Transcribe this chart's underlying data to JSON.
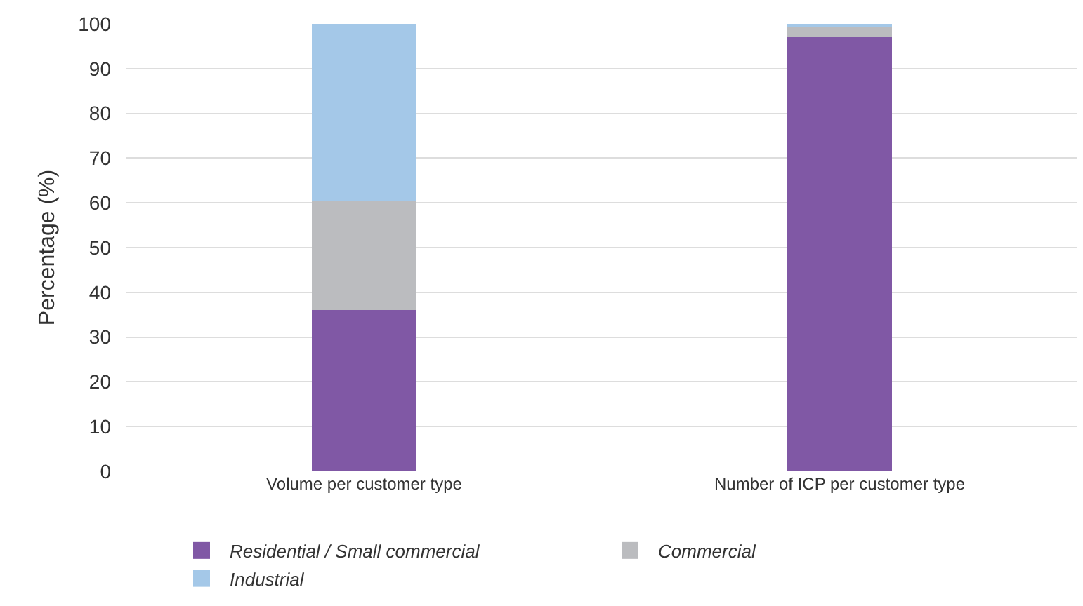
{
  "chart_data": {
    "type": "bar",
    "stacked": true,
    "ylabel": "Percentage (%)",
    "categories": [
      "Volume per customer type",
      "Number of ICP per customer type"
    ],
    "series": [
      {
        "name": "Residential / Small commercial",
        "color": "#8058a5",
        "values": [
          36,
          97
        ]
      },
      {
        "name": "Commercial",
        "color": "#bbbcbf",
        "values": [
          24.5,
          2.5
        ]
      },
      {
        "name": "Industrial",
        "color": "#a4c8e8",
        "values": [
          39.5,
          0.5
        ]
      }
    ],
    "ylim": [
      0,
      100
    ],
    "yticks": [
      0,
      10,
      20,
      30,
      40,
      50,
      60,
      70,
      80,
      90,
      100
    ],
    "grid": "y",
    "legend": "bottom"
  }
}
